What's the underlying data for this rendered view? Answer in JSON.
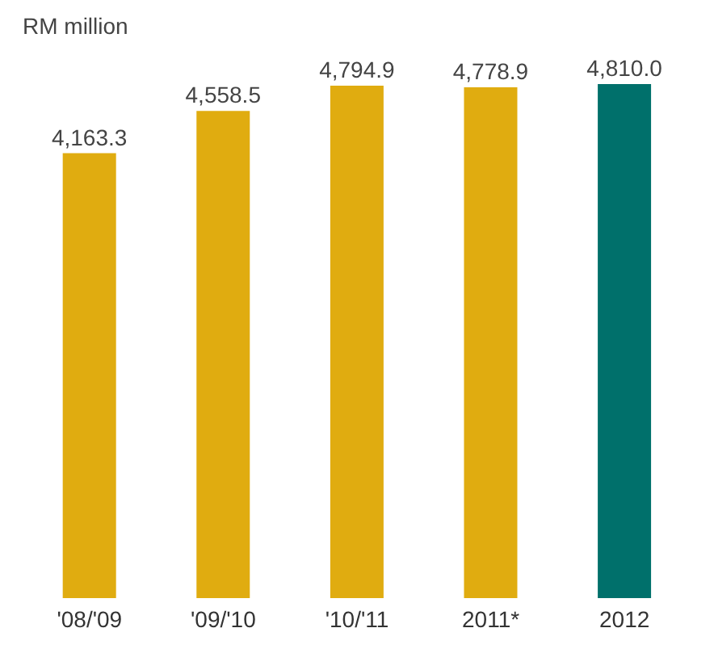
{
  "chart_data": {
    "type": "bar",
    "title": "RM million",
    "categories": [
      "'08/'09",
      "'09/'10",
      "'10/'11",
      "2011*",
      "2012"
    ],
    "values": [
      4163.3,
      4558.5,
      4794.9,
      4778.9,
      4810.0
    ],
    "value_labels": [
      "4,163.3",
      "4,558.5",
      "4,794.9",
      "4,778.9",
      "4,810.0"
    ],
    "colors": [
      "#e0ac10",
      "#e0ac10",
      "#e0ac10",
      "#e0ac10",
      "#00706b"
    ]
  }
}
